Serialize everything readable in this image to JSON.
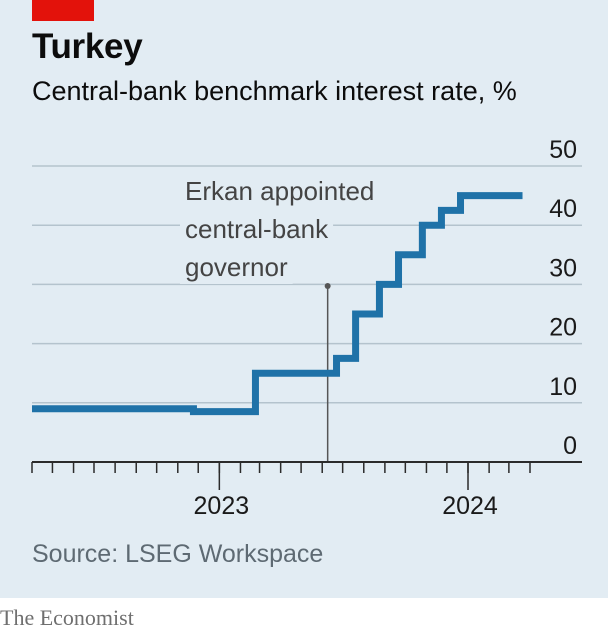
{
  "header": {
    "title": "Turkey",
    "subtitle": "Central-bank benchmark interest rate, %"
  },
  "footer": {
    "source": "Source: LSEG Workspace",
    "brand": "The Economist"
  },
  "colors": {
    "line": "#1f72a8",
    "grid": "#b4c3cd",
    "background": "#e2ecf3",
    "accent": "#e3120b"
  },
  "chart_data": {
    "type": "line",
    "title": "Turkey",
    "subtitle": "Central-bank benchmark interest rate, %",
    "xlabel": "",
    "ylabel": "",
    "ylim": [
      0,
      50
    ],
    "yticks": [
      0,
      10,
      20,
      30,
      40,
      50
    ],
    "y_axis_side": "right",
    "grid": true,
    "xlim": [
      "2022-04-01",
      "2024-04-01"
    ],
    "x_tick_labels": [
      {
        "date": "2023-01-01",
        "label": "2023"
      },
      {
        "date": "2024-01-01",
        "label": "2024"
      }
    ],
    "x_minor_ticks": [
      "2022-04-01",
      "2022-05-01",
      "2022-06-01",
      "2022-07-01",
      "2022-08-01",
      "2022-09-01",
      "2022-10-01",
      "2022-11-01",
      "2022-12-01",
      "2023-01-01",
      "2023-02-01",
      "2023-03-01",
      "2023-04-01",
      "2023-05-01",
      "2023-06-01",
      "2023-07-01",
      "2023-08-01",
      "2023-09-01",
      "2023-10-01",
      "2023-11-01",
      "2023-12-01",
      "2024-01-01",
      "2024-02-01",
      "2024-03-01",
      "2024-04-01"
    ],
    "series": [
      {
        "step": "post",
        "x": [
          "2022-04-01",
          "2022-11-24",
          "2023-02-23",
          "2023-06-22",
          "2023-07-20",
          "2023-08-24",
          "2023-09-21",
          "2023-10-26",
          "2023-11-23",
          "2023-12-21",
          "2024-02-22",
          "2024-03-21"
        ],
        "y": [
          9,
          8.5,
          15,
          17.5,
          25,
          30,
          35,
          40,
          42.5,
          45,
          45,
          45
        ]
      }
    ],
    "annotations": [
      {
        "text": [
          "Erkan appointed",
          "central-bank",
          "governor"
        ],
        "date": "2023-06-09"
      }
    ]
  }
}
